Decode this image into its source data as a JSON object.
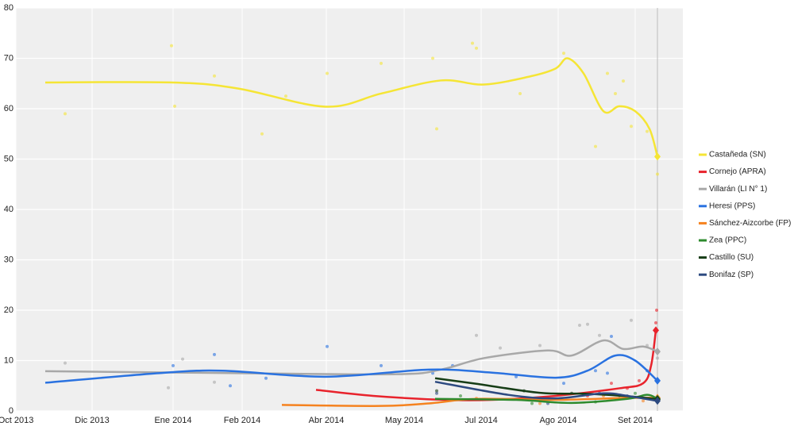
{
  "chart_data": {
    "type": "line",
    "xlim": [
      0,
      8.4
    ],
    "ylim": [
      0,
      80
    ],
    "yticks": [
      0,
      10,
      20,
      30,
      40,
      50,
      60,
      70,
      80
    ],
    "xticks": [
      {
        "value": 0,
        "label": "Oct 2013"
      },
      {
        "value": 0.96,
        "label": "Dic 2013"
      },
      {
        "value": 1.98,
        "label": "Ene 2014"
      },
      {
        "value": 2.85,
        "label": "Feb 2014"
      },
      {
        "value": 3.91,
        "label": "Abr 2014"
      },
      {
        "value": 4.89,
        "label": "May 2014"
      },
      {
        "value": 5.86,
        "label": "Jul 2014"
      },
      {
        "value": 6.83,
        "label": "Ago 2014"
      },
      {
        "value": 7.8,
        "label": "Set 2014"
      }
    ],
    "grid": true,
    "legend": "right",
    "series": [
      {
        "name": "Castañeda (SN)",
        "color": "#f5e535",
        "x": [
          0.37,
          1.98,
          2.8,
          3.9,
          4.6,
          5.35,
          5.9,
          6.5,
          6.8,
          6.95,
          7.15,
          7.4,
          7.6,
          7.8,
          7.98,
          8.08
        ],
        "values": [
          65.2,
          65.2,
          64,
          60.4,
          63,
          65.6,
          64.8,
          66.5,
          68,
          70,
          67,
          59.5,
          60.5,
          59.5,
          56,
          50.5
        ],
        "points_x": [
          0.62,
          1.96,
          2.0,
          2.5,
          3.1,
          3.4,
          3.92,
          4.6,
          5.25,
          5.3,
          5.75,
          5.8,
          6.35,
          6.9,
          7.3,
          7.45,
          7.55,
          7.65,
          7.75,
          7.95,
          8.08
        ],
        "points_y": [
          59,
          72.5,
          60.5,
          66.5,
          55,
          62.5,
          67,
          69,
          70,
          56,
          73,
          72,
          63,
          71,
          52.5,
          67,
          63,
          65.5,
          56.5,
          55.5,
          47
        ]
      },
      {
        "name": "Cornejo (APRA)",
        "color": "#e8232c",
        "x": [
          3.78,
          4.5,
          5.4,
          6.0,
          6.8,
          7.6,
          7.9,
          8.0,
          8.06
        ],
        "values": [
          4.2,
          3,
          2.2,
          2.2,
          3,
          4.5,
          5.5,
          9,
          16
        ],
        "points_x": [
          7.2,
          7.5,
          7.7,
          7.85,
          8.06,
          8.07
        ],
        "points_y": [
          3,
          5.5,
          4.5,
          6,
          17.5,
          20
        ]
      },
      {
        "name": "Villarán (LI N° 1)",
        "color": "#a8a8a8",
        "x": [
          0.37,
          2.8,
          4.8,
          5.35,
          5.9,
          6.7,
          7.0,
          7.4,
          7.65,
          7.9,
          8.08
        ],
        "values": [
          7.9,
          7.5,
          7.3,
          8.2,
          10.5,
          12,
          11,
          14,
          12.3,
          12.8,
          11.8
        ],
        "points_x": [
          0.62,
          1.92,
          2.1,
          2.5,
          5.8,
          6.1,
          6.6,
          7.1,
          7.2,
          7.35,
          7.75,
          7.95,
          8.08
        ],
        "points_y": [
          9.5,
          4.6,
          10.3,
          5.7,
          15,
          12.5,
          13,
          17,
          17.2,
          15,
          18,
          13,
          10.5
        ]
      },
      {
        "name": "Heresi (PPS)",
        "color": "#2a72e0",
        "x": [
          0.37,
          1.8,
          2.6,
          3.9,
          5.2,
          6.0,
          6.8,
          7.2,
          7.55,
          7.8,
          8.08
        ],
        "values": [
          5.6,
          7.5,
          8,
          6.8,
          8.2,
          7.6,
          6.6,
          8,
          11,
          10,
          6
        ],
        "points_x": [
          1.98,
          2.5,
          2.7,
          3.15,
          3.92,
          4.6,
          5.25,
          5.5,
          6.3,
          6.9,
          7.3,
          7.45,
          7.5,
          7.95
        ],
        "points_y": [
          9,
          11.2,
          5,
          6.5,
          12.8,
          9,
          7.5,
          9,
          6.8,
          5.5,
          8,
          7.5,
          14.8,
          8
        ]
      },
      {
        "name": "Sánchez-Aizcorbe (FP)",
        "color": "#f5821f",
        "x": [
          3.35,
          4.6,
          5.2,
          5.8,
          6.8,
          7.7,
          8.08
        ],
        "values": [
          1.2,
          1,
          1.5,
          2.4,
          2.2,
          2.6,
          2.6
        ],
        "points_x": [
          5.8,
          6.6,
          7.4,
          7.9
        ],
        "points_y": [
          2.5,
          1.5,
          3,
          2
        ]
      },
      {
        "name": "Zea (PPC)",
        "color": "#2e8b2e",
        "x": [
          5.28,
          6.3,
          7.0,
          7.7,
          7.95,
          8.08
        ],
        "values": [
          2.4,
          2.2,
          1.6,
          2.4,
          3.2,
          2.4
        ],
        "points_x": [
          5.6,
          6.5,
          7.3,
          7.8
        ],
        "points_y": [
          3,
          1.5,
          1.8,
          3.5
        ]
      },
      {
        "name": "Castillo (SU)",
        "color": "#163d16",
        "x": [
          5.28,
          5.8,
          6.6,
          7.2,
          7.8,
          8.08
        ],
        "values": [
          6.5,
          5.4,
          3.6,
          3.4,
          2.8,
          2.3
        ],
        "points_x": [
          5.3,
          6.4,
          7.0,
          7.6
        ],
        "points_y": [
          4,
          4,
          3.5,
          2.5
        ]
      },
      {
        "name": "Bonifaz (SP)",
        "color": "#2d4a80",
        "x": [
          5.28,
          6.2,
          6.8,
          7.4,
          7.7,
          8.08
        ],
        "values": [
          5.8,
          3.2,
          2.5,
          3.5,
          3,
          2
        ],
        "points_x": [
          5.3,
          6.7,
          7.35,
          7.7
        ],
        "points_y": [
          3.5,
          1.5,
          3.5,
          3
        ]
      }
    ]
  }
}
